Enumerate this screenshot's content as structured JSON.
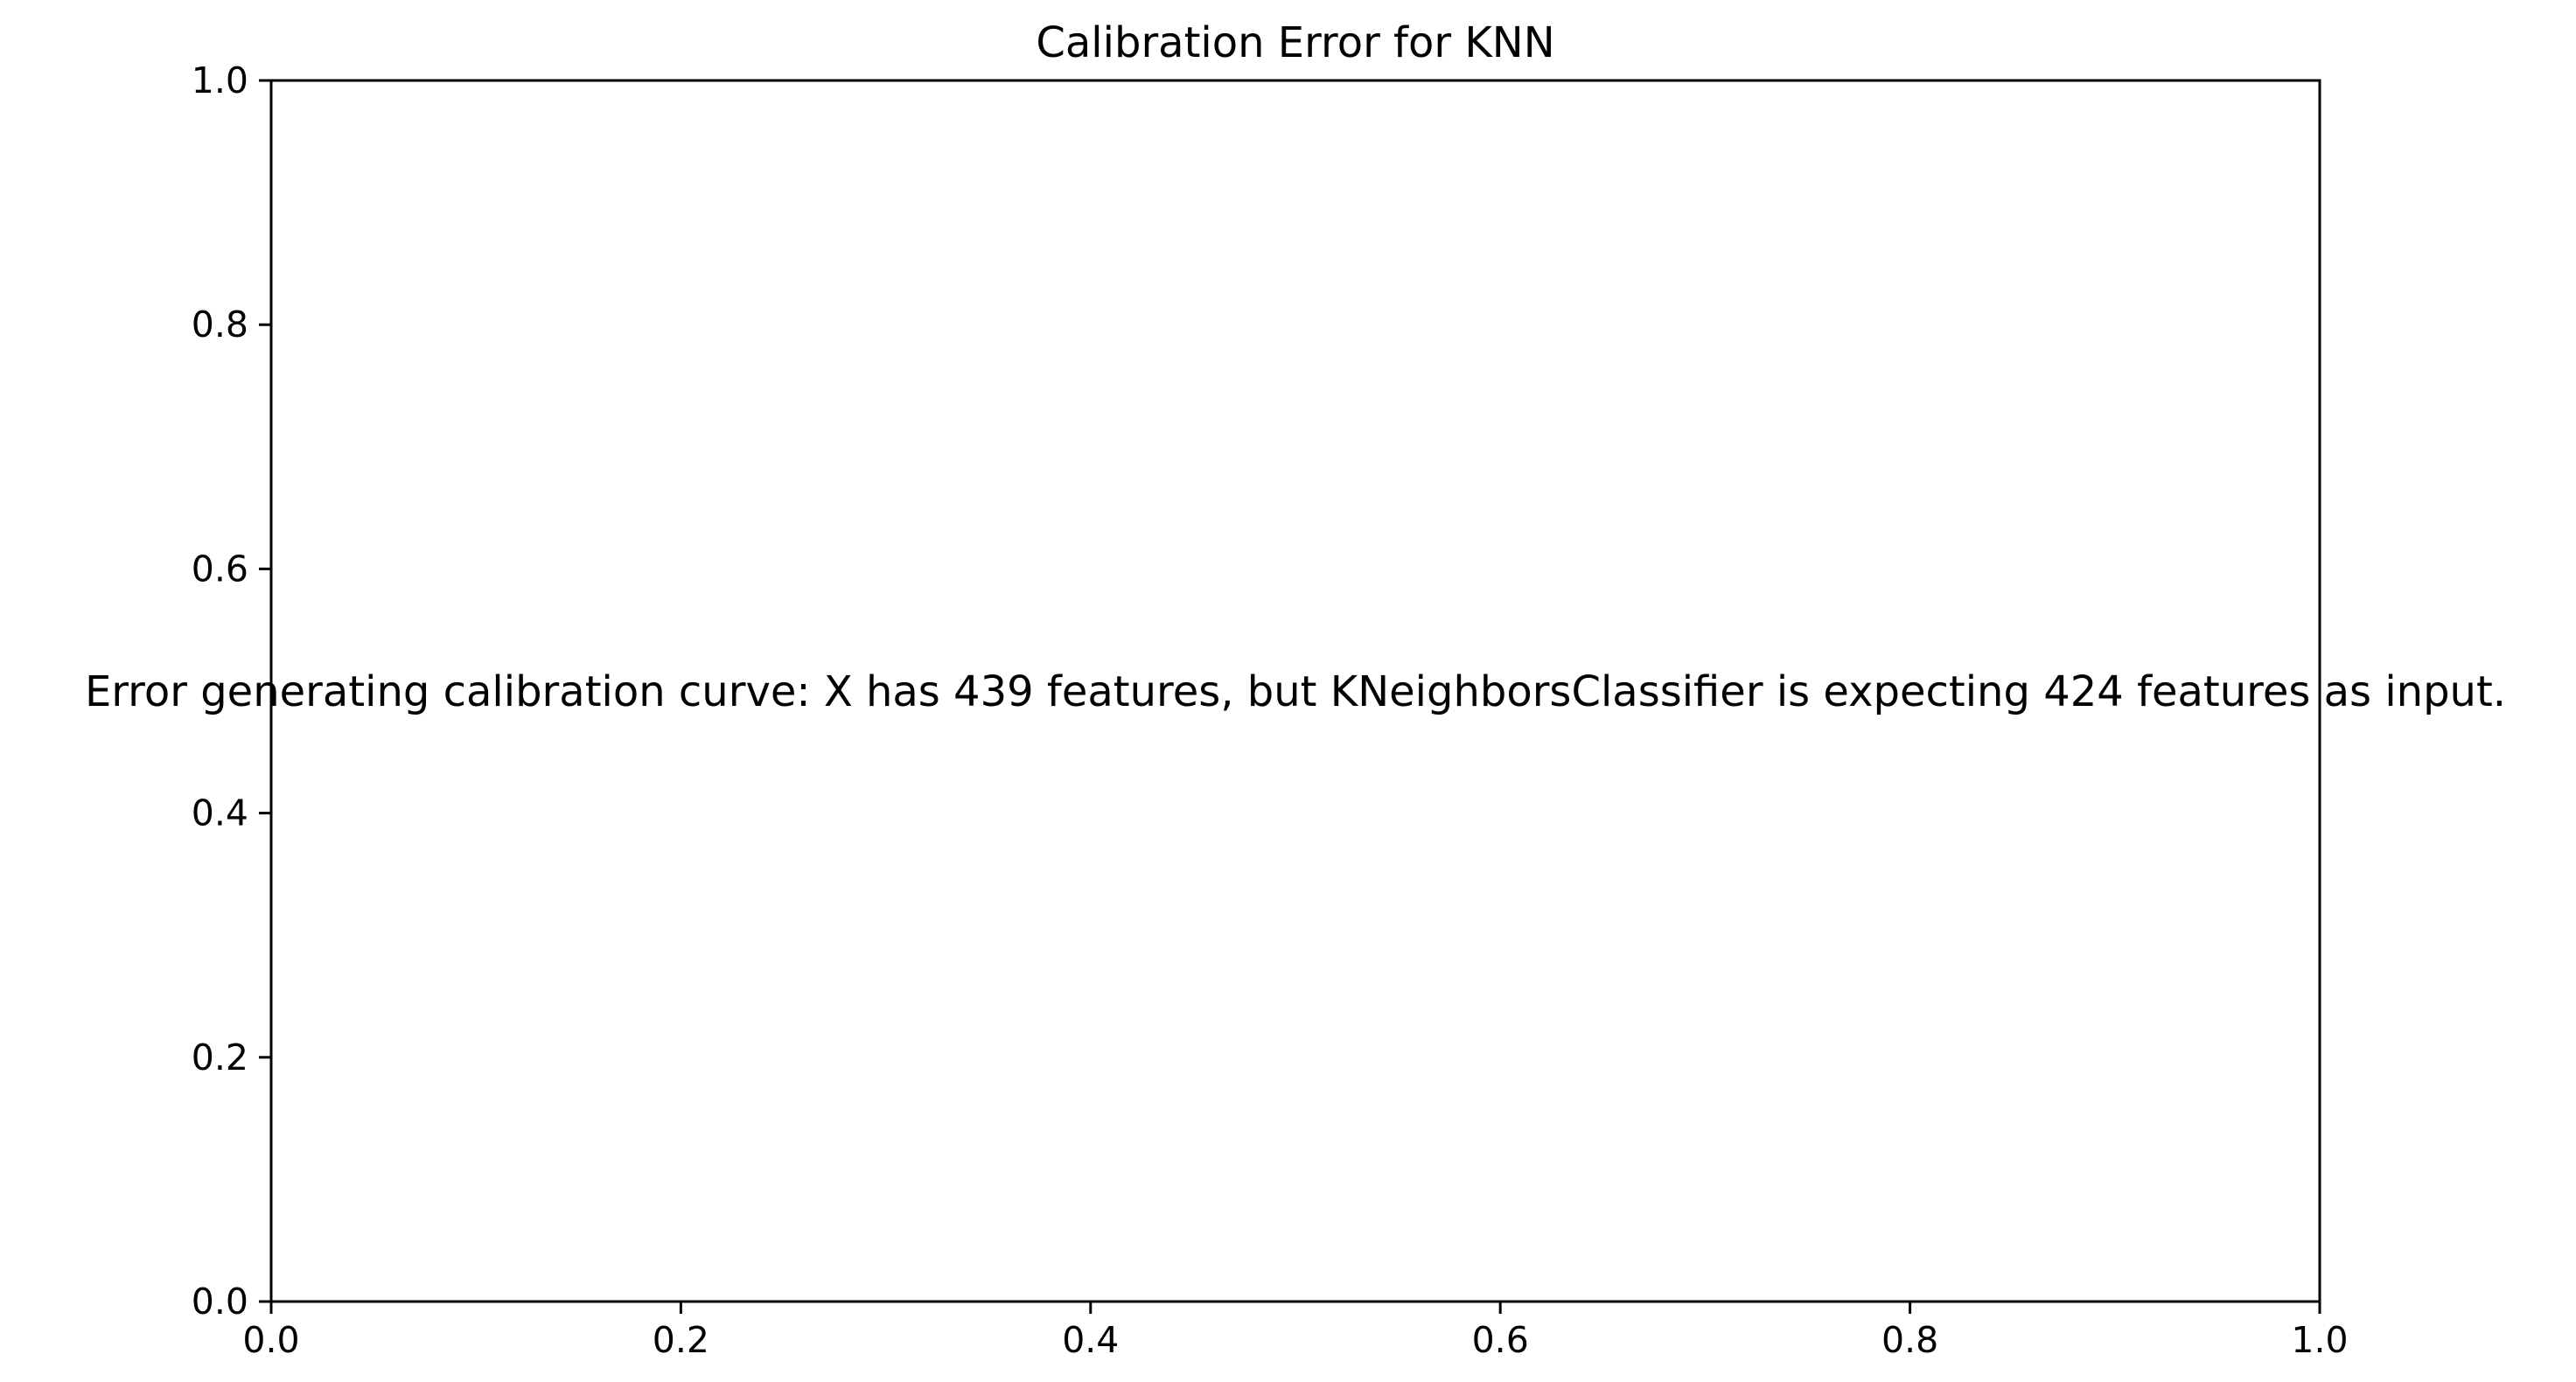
{
  "chart_data": {
    "type": "line",
    "title": "Calibration Error for KNN",
    "xlabel": "",
    "ylabel": "",
    "xlim": [
      0.0,
      1.0
    ],
    "ylim": [
      0.0,
      1.0
    ],
    "x_ticks": [
      0.0,
      0.2,
      0.4,
      0.6,
      0.8,
      1.0
    ],
    "y_ticks": [
      0.0,
      0.2,
      0.4,
      0.6,
      0.8,
      1.0
    ],
    "x_tick_labels": [
      "0.0",
      "0.2",
      "0.4",
      "0.6",
      "0.8",
      "1.0"
    ],
    "y_tick_labels": [
      "0.0",
      "0.2",
      "0.4",
      "0.6",
      "0.8",
      "1.0"
    ],
    "series": [],
    "grid": false,
    "annotation": {
      "text": "Error generating calibration curve: X has 439 features, but KNeighborsClassifier is expecting 424 features as input.",
      "x": 0.5,
      "y": 0.5
    },
    "colors": {
      "axes": "#000000",
      "background": "#ffffff"
    }
  }
}
